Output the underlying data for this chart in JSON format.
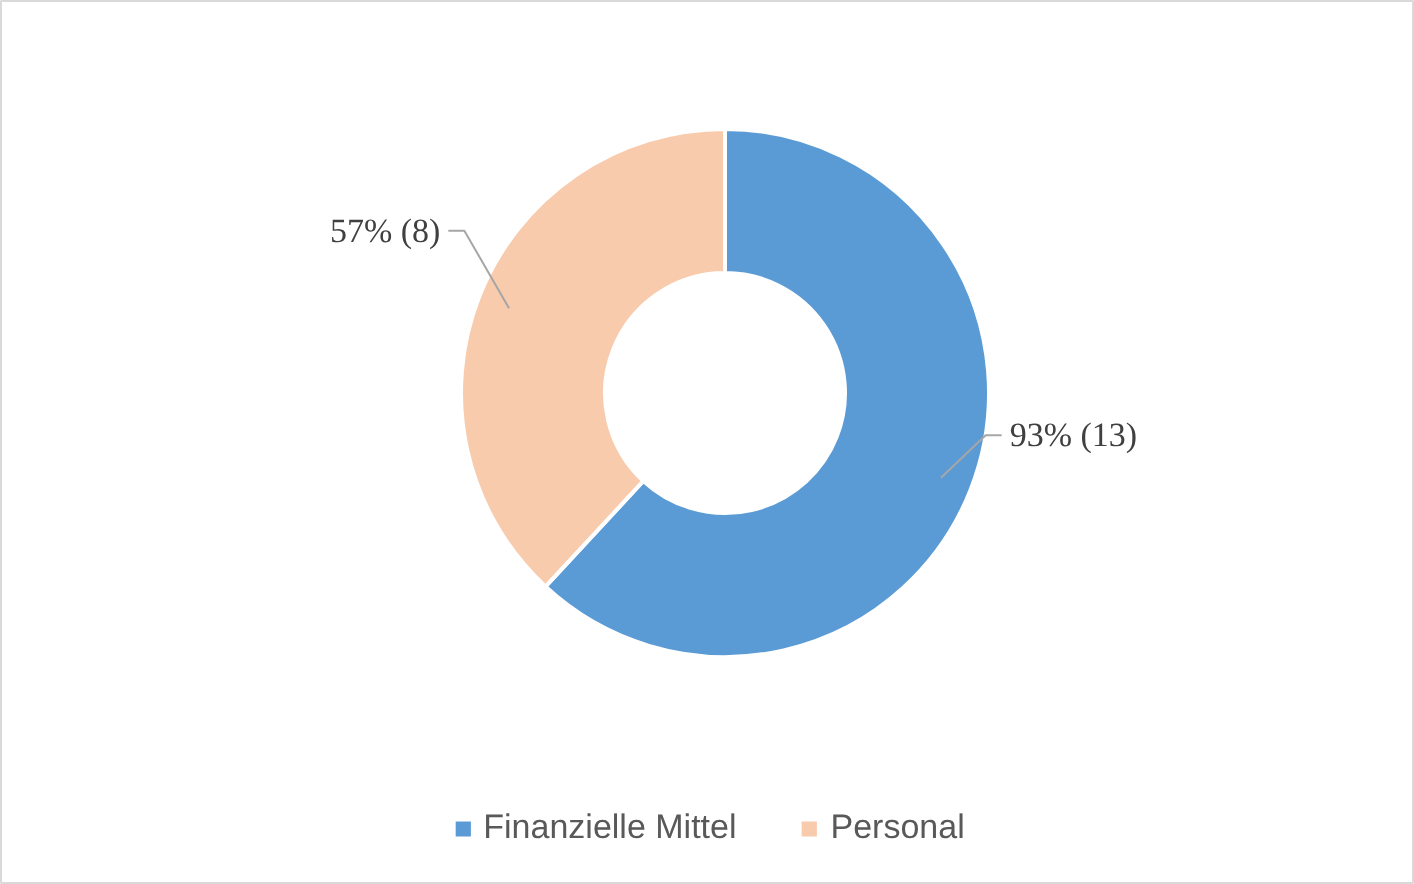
{
  "chart_data": {
    "type": "donut",
    "categories": [
      "Finanzielle Mittel",
      "Personal"
    ],
    "values": [
      13,
      8
    ],
    "colors": [
      "#5b9bd5",
      "#f8cbad"
    ],
    "value_labels": [
      "93% (13)",
      "57% (8)"
    ],
    "legend": "bottom"
  }
}
